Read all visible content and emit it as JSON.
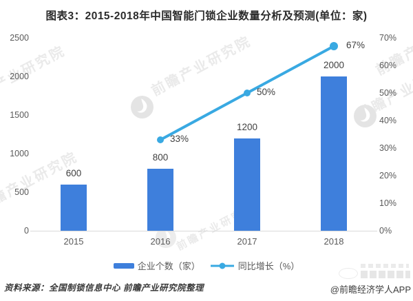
{
  "title": "图表3：2015-2018年中国智能门锁企业数量分析及预测(单位：家)",
  "chart_data": {
    "type": "bar",
    "subtype": "bar+line combo",
    "categories": [
      "2015",
      "2016",
      "2017",
      "2018"
    ],
    "series": [
      {
        "name": "企业个数（家）",
        "type": "bar",
        "axis": "left",
        "values": [
          600,
          800,
          1200,
          2000
        ],
        "color": "#3E7FDC",
        "data_labels": [
          "600",
          "800",
          "1200",
          "2000"
        ]
      },
      {
        "name": "同比增长（%）",
        "type": "line",
        "axis": "right",
        "values": [
          null,
          33,
          50,
          67
        ],
        "color": "#39A9E2",
        "data_labels": [
          null,
          "33%",
          "50%",
          "67%"
        ]
      }
    ],
    "left_axis": {
      "min": 0,
      "max": 2500,
      "step": 500,
      "ticks": [
        "0",
        "500",
        "1000",
        "1500",
        "2000",
        "2500"
      ]
    },
    "right_axis": {
      "min": 0,
      "max": 70,
      "step": 10,
      "ticks": [
        "0%",
        "10%",
        "20%",
        "30%",
        "40%",
        "50%",
        "60%",
        "70%"
      ]
    },
    "grid": false,
    "legend_position": "bottom",
    "title": "图表3：2015-2018年中国智能门锁企业数量分析及预测(单位：家)"
  },
  "legend": {
    "bar_label": "企业个数（家）",
    "line_label": "同比增长（%）"
  },
  "watermark": {
    "text": "前瞻产业研究院"
  },
  "footer": {
    "source": "资料来源：全国制锁信息中心 前瞻产业研究院整理",
    "credit": "@前瞻经济学人APP"
  },
  "colors": {
    "bar": "#3E7FDC",
    "line": "#39A9E2",
    "axis_text": "#595959",
    "axis_line": "#d9d9d9",
    "label_text": "#404040"
  }
}
